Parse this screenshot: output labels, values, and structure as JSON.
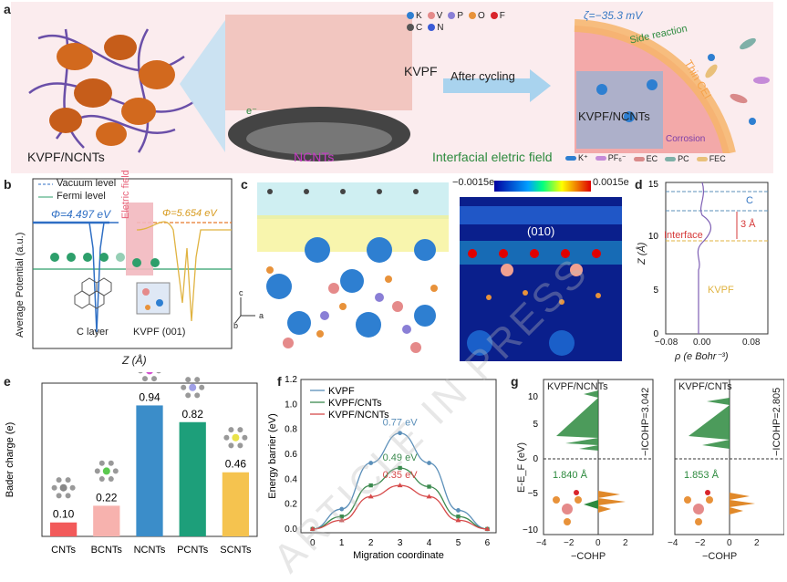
{
  "panel_a": {
    "label": "a",
    "left_caption": "KVPF/NCNTs",
    "center_caption": "NCNTs",
    "structure_label": "KVPF",
    "electron_label": "e⁻",
    "arrow_label": "After cycling",
    "field_caption": "Interfacial eletric field",
    "zeta_label": "ζ=−35.3 mV",
    "side_reaction": "Side reaction",
    "cei_label": "Thin CEI",
    "kvpf_ncnts_label": "KVPF/NCNTs",
    "corrosion_label": "Corrosion",
    "atom_legend": [
      {
        "symbol": "K",
        "color": "#2e7fd1"
      },
      {
        "symbol": "V",
        "color": "#e58a8a"
      },
      {
        "symbol": "P",
        "color": "#8a7fd6"
      },
      {
        "symbol": "O",
        "color": "#e8923a"
      },
      {
        "symbol": "F",
        "color": "#d9242b"
      },
      {
        "symbol": "C",
        "color": "#555555"
      },
      {
        "symbol": "N",
        "color": "#3b5bd6"
      }
    ],
    "species_legend": [
      {
        "label": "K⁺",
        "color": "#2e7fd1"
      },
      {
        "label": "PF₆⁻",
        "color": "#c58bd8"
      },
      {
        "label": "EC",
        "color": "#d98a8a"
      },
      {
        "label": "PC",
        "color": "#7fb0a8"
      },
      {
        "label": "FEC",
        "color": "#e9c07a"
      }
    ]
  },
  "panel_b": {
    "label": "b",
    "legend_vacuum": "Vacuum level",
    "legend_fermi": "Fermi level",
    "phi_left": "Φ=4.497 eV",
    "phi_right": "Φ=5.654 eV",
    "field_label": "Eletric field",
    "ylabel": "Average Potential (a.u.)",
    "xlabel": "Z (Å)",
    "left_layer": "C layer",
    "right_layer": "KVPF (001)"
  },
  "panel_c": {
    "label": "c",
    "scale_min": "−0.0015e",
    "scale_max": "0.0015e",
    "plane_label": "(010)",
    "axes": [
      "c",
      "b",
      "a"
    ]
  },
  "panel_d": {
    "label": "d",
    "ylabel": "Z (Å)",
    "xlabel": "ρ (e Bohr⁻³)",
    "c_label": "C",
    "gap_label": "3 Å",
    "interface_label": "Interface",
    "kvpf_label": "KVPF",
    "xticks": [
      "−0.08",
      "0.00",
      "0.08"
    ],
    "yticks": [
      "0",
      "5",
      "10",
      "15"
    ]
  },
  "panel_e": {
    "label": "e",
    "chart_data": {
      "type": "bar",
      "title": "",
      "ylabel": "Bader charge (e)",
      "xlabel": "",
      "categories": [
        "CNTs",
        "BCNTs",
        "NCNTs",
        "PCNTs",
        "SCNTs"
      ],
      "values": [
        0.1,
        0.22,
        0.94,
        0.82,
        0.46
      ],
      "value_labels": [
        "0.10",
        "0.22",
        "0.94",
        "0.82",
        "0.46"
      ],
      "colors": [
        "#f25a5a",
        "#f7b2ae",
        "#3b8dc9",
        "#1d9f7a",
        "#f5c34f"
      ],
      "dopant_colors": [
        "#888888",
        "#5bc94f",
        "#d24fcf",
        "#9f9fe6",
        "#e9e24a"
      ],
      "ylim": [
        0,
        1.1
      ]
    }
  },
  "panel_f": {
    "label": "f",
    "chart_data": {
      "type": "line",
      "title": "",
      "xlabel": "Migration coordinate",
      "ylabel": "Energy barrier (eV)",
      "x": [
        0,
        1,
        2,
        3,
        4,
        5,
        6
      ],
      "xlim": [
        -0.4,
        6.3
      ],
      "ylim": [
        -0.03,
        1.2
      ],
      "xticks": [
        "0",
        "1",
        "2",
        "3",
        "4",
        "5",
        "6"
      ],
      "yticks": [
        "0.0",
        "0.2",
        "0.4",
        "0.6",
        "0.8",
        "1.0",
        "1.2"
      ],
      "series": [
        {
          "name": "KVPF",
          "color": "#5b8fb9",
          "marker": "circle",
          "values": [
            0.0,
            0.16,
            0.53,
            0.77,
            0.53,
            0.15,
            0.0
          ],
          "peak_label": "0.77 eV"
        },
        {
          "name": "KVPF/CNTs",
          "color": "#3c8a4f",
          "marker": "square",
          "values": [
            0.0,
            0.1,
            0.35,
            0.49,
            0.34,
            0.1,
            0.0
          ],
          "peak_label": "0.49 eV"
        },
        {
          "name": "KVPF/NCNTs",
          "color": "#d64a4a",
          "marker": "triangle",
          "values": [
            0.0,
            0.07,
            0.26,
            0.35,
            0.26,
            0.07,
            0.0
          ],
          "peak_label": "0.35 eV"
        }
      ]
    }
  },
  "panel_g": {
    "label": "g",
    "left_title": "KVPF/NCNTs",
    "right_title": "KVPF/CNTs",
    "left_icohp": "−ICOHP=3.042",
    "right_icohp": "−ICOHP=2.805",
    "left_bond": "1.840 Å",
    "right_bond": "1.853 Å",
    "ylabel": "E-E_F (eV)",
    "xlabel": "−COHP",
    "xticks": [
      "−4",
      "−2",
      "0",
      "2"
    ],
    "yticks": [
      "10",
      "5",
      "0",
      "−5",
      "−10"
    ]
  },
  "watermark": "ARTICLE IN PRESS"
}
